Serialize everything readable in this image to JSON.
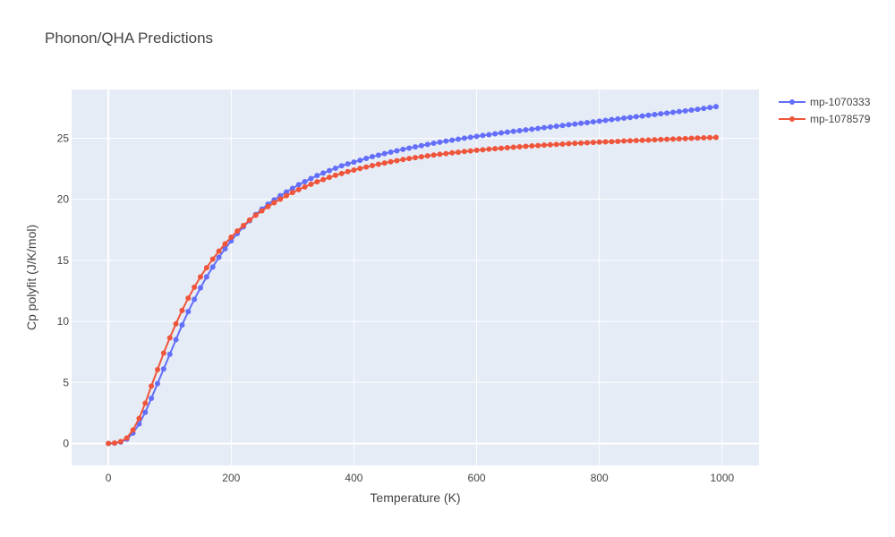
{
  "chart_data": {
    "type": "line",
    "title": "Phonon/QHA Predictions",
    "xlabel": "Temperature (K)",
    "ylabel": "Cp polyfit (J/K/mol)",
    "xlim": [
      -60,
      1060
    ],
    "ylim": [
      -1.8,
      29.0
    ],
    "x_ticks": [
      0,
      200,
      400,
      600,
      800,
      1000
    ],
    "y_ticks": [
      0,
      5,
      10,
      15,
      20,
      25
    ],
    "grid": true,
    "legend_position": "top-right",
    "colors": {
      "plot_bg": "#e5ecf6",
      "grid": "#ffffff"
    },
    "x": [
      0,
      10,
      20,
      30,
      40,
      50,
      60,
      70,
      80,
      90,
      100,
      110,
      120,
      130,
      140,
      150,
      160,
      170,
      180,
      190,
      200,
      210,
      220,
      230,
      240,
      250,
      260,
      270,
      280,
      290,
      300,
      310,
      320,
      330,
      340,
      350,
      360,
      370,
      380,
      390,
      400,
      410,
      420,
      430,
      440,
      450,
      460,
      470,
      480,
      490,
      500,
      510,
      520,
      530,
      540,
      550,
      560,
      570,
      580,
      590,
      600,
      610,
      620,
      630,
      640,
      650,
      660,
      670,
      680,
      690,
      700,
      710,
      720,
      730,
      740,
      750,
      760,
      770,
      780,
      790,
      800,
      810,
      820,
      830,
      840,
      850,
      860,
      870,
      880,
      890,
      900,
      910,
      920,
      930,
      940,
      950,
      960,
      970,
      980,
      990
    ],
    "series": [
      {
        "name": "mp-1070333",
        "color": "#636efa",
        "values": [
          0.0,
          0.02,
          0.12,
          0.35,
          0.85,
          1.6,
          2.55,
          3.7,
          4.9,
          6.1,
          7.3,
          8.5,
          9.7,
          10.8,
          11.8,
          12.75,
          13.65,
          14.45,
          15.25,
          15.95,
          16.6,
          17.2,
          17.75,
          18.25,
          18.75,
          19.2,
          19.6,
          19.95,
          20.3,
          20.6,
          20.9,
          21.2,
          21.45,
          21.7,
          21.95,
          22.15,
          22.35,
          22.55,
          22.75,
          22.9,
          23.05,
          23.2,
          23.35,
          23.5,
          23.62,
          23.75,
          23.87,
          23.98,
          24.1,
          24.2,
          24.3,
          24.4,
          24.5,
          24.6,
          24.68,
          24.77,
          24.85,
          24.93,
          25.01,
          25.09,
          25.16,
          25.23,
          25.3,
          25.37,
          25.44,
          25.51,
          25.57,
          25.63,
          25.69,
          25.75,
          25.81,
          25.87,
          25.93,
          25.99,
          26.05,
          26.11,
          26.17,
          26.23,
          26.29,
          26.35,
          26.41,
          26.47,
          26.53,
          26.59,
          26.65,
          26.71,
          26.77,
          26.83,
          26.89,
          26.95,
          27.01,
          27.07,
          27.13,
          27.19,
          27.25,
          27.31,
          27.38,
          27.45,
          27.52,
          27.6
        ]
      },
      {
        "name": "mp-1078579",
        "color": "#ef553b",
        "values": [
          0.0,
          0.03,
          0.15,
          0.45,
          1.1,
          2.05,
          3.3,
          4.7,
          6.05,
          7.4,
          8.65,
          9.8,
          10.9,
          11.9,
          12.8,
          13.65,
          14.4,
          15.1,
          15.75,
          16.35,
          16.9,
          17.4,
          17.85,
          18.3,
          18.7,
          19.05,
          19.4,
          19.72,
          20.02,
          20.3,
          20.56,
          20.8,
          21.02,
          21.24,
          21.44,
          21.62,
          21.8,
          21.97,
          22.12,
          22.27,
          22.4,
          22.53,
          22.65,
          22.77,
          22.88,
          22.98,
          23.08,
          23.17,
          23.26,
          23.34,
          23.42,
          23.49,
          23.56,
          23.63,
          23.69,
          23.75,
          23.81,
          23.86,
          23.92,
          23.97,
          24.02,
          24.06,
          24.11,
          24.15,
          24.19,
          24.23,
          24.27,
          24.31,
          24.34,
          24.38,
          24.41,
          24.44,
          24.47,
          24.5,
          24.53,
          24.56,
          24.59,
          24.61,
          24.64,
          24.66,
          24.69,
          24.71,
          24.73,
          24.75,
          24.78,
          24.8,
          24.82,
          24.84,
          24.86,
          24.88,
          24.9,
          24.92,
          24.94,
          24.96,
          24.98,
          25.0,
          25.02,
          25.04,
          25.06,
          25.08
        ]
      }
    ]
  }
}
